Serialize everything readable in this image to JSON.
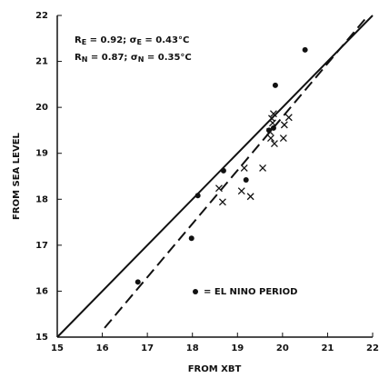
{
  "chart_data": {
    "type": "scatter",
    "xlabel": "FROM XBT",
    "ylabel": "FROM SEA LEVEL",
    "xlim": [
      15,
      22
    ],
    "ylim": [
      15,
      22
    ],
    "xticks": [
      15,
      16,
      17,
      18,
      19,
      20,
      21,
      22
    ],
    "yticks": [
      15,
      16,
      17,
      18,
      19,
      20,
      21,
      22
    ],
    "annotations": [
      {
        "parts": [
          {
            "text": "R"
          },
          {
            "text": "E",
            "sub": true
          },
          {
            "text": " = 0.92;  "
          },
          {
            "text": "σ"
          },
          {
            "text": "E",
            "sub": true
          },
          {
            "text": " = 0.43°C"
          }
        ]
      },
      {
        "parts": [
          {
            "text": "R"
          },
          {
            "text": "N",
            "sub": true
          },
          {
            "text": " = 0.87;  "
          },
          {
            "text": "σ"
          },
          {
            "text": "N",
            "sub": true
          },
          {
            "text": " = 0.35°C"
          }
        ]
      }
    ],
    "legend": "lower right",
    "series": [
      {
        "marker": "x",
        "color": "#111111",
        "x": [
          18.67,
          18.59,
          19.15,
          19.09,
          19.29,
          19.56,
          19.74,
          19.82,
          19.78,
          19.76,
          19.8,
          20.02,
          20.04,
          20.14,
          19.72
        ],
        "values": [
          17.94,
          18.24,
          18.68,
          18.18,
          18.06,
          18.68,
          19.33,
          19.21,
          19.66,
          19.76,
          19.86,
          19.33,
          19.62,
          19.78,
          19.47
        ]
      },
      {
        "name": "= EL NINO PERIOD",
        "marker": "dot",
        "color": "#111111",
        "x": [
          16.79,
          17.98,
          18.12,
          18.69,
          19.19,
          19.84,
          20.5,
          19.8,
          19.7
        ],
        "values": [
          16.2,
          17.15,
          18.08,
          18.62,
          18.42,
          20.48,
          21.25,
          19.55,
          19.5
        ]
      },
      {
        "marker": "line",
        "style": "solid",
        "color": "#111111",
        "x": [
          15,
          22
        ],
        "values": [
          15,
          22
        ]
      },
      {
        "marker": "line",
        "style": "dashed",
        "color": "#111111",
        "x": [
          16.05,
          21.9
        ],
        "values": [
          15.2,
          22
        ]
      }
    ]
  }
}
